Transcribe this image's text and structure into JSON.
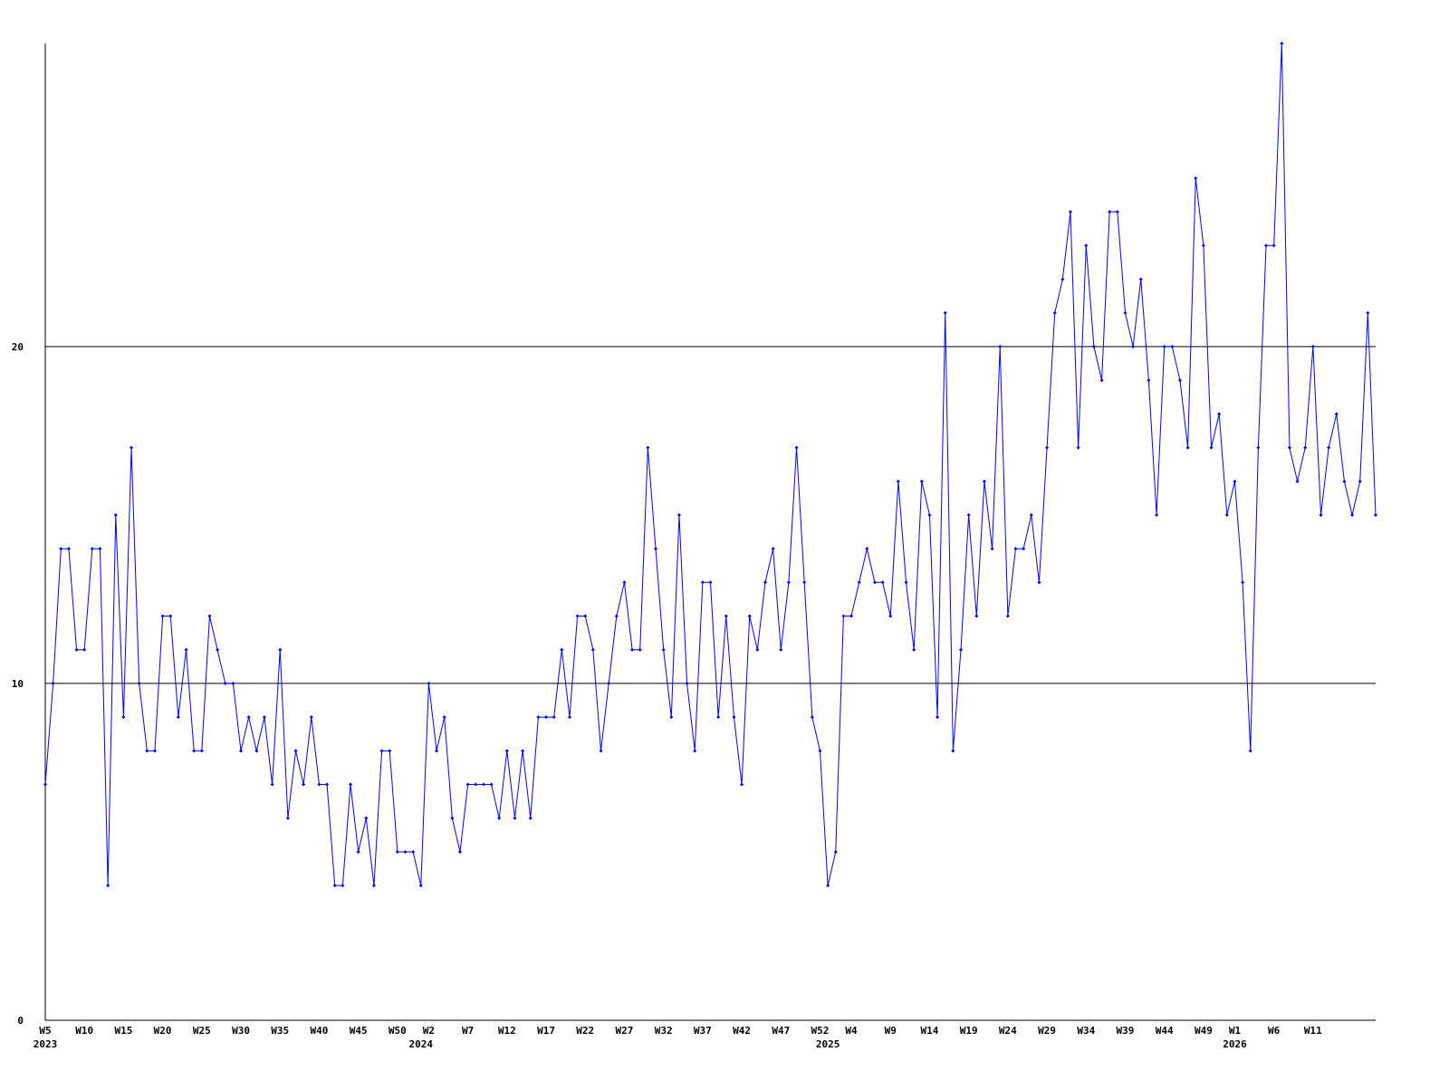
{
  "chart_data": {
    "type": "line",
    "color": "#0000ff",
    "ylim": [
      0,
      29
    ],
    "yticks": [
      0,
      10,
      20
    ],
    "grid": true,
    "categories": [
      "W5",
      null,
      null,
      null,
      null,
      "W10",
      null,
      null,
      null,
      null,
      "W15",
      null,
      null,
      null,
      null,
      "W20",
      null,
      null,
      null,
      null,
      "W25",
      null,
      null,
      null,
      null,
      "W30",
      null,
      null,
      null,
      null,
      "W35",
      null,
      null,
      null,
      null,
      "W40",
      null,
      null,
      null,
      null,
      "W45",
      null,
      null,
      null,
      null,
      "W50",
      null,
      null,
      null,
      "W2",
      null,
      null,
      null,
      null,
      "W7",
      null,
      null,
      null,
      null,
      "W12",
      null,
      null,
      null,
      null,
      "W17",
      null,
      null,
      null,
      null,
      "W22",
      null,
      null,
      null,
      null,
      "W27",
      null,
      null,
      null,
      null,
      "W32",
      null,
      null,
      null,
      null,
      "W37",
      null,
      null,
      null,
      null,
      "W42",
      null,
      null,
      null,
      null,
      "W47",
      null,
      null,
      null,
      null,
      "W52",
      null,
      null,
      null,
      "W4",
      null,
      null,
      null,
      null,
      "W9",
      null,
      null,
      null,
      null,
      "W14",
      null,
      null,
      null,
      null,
      "W19",
      null,
      null,
      null,
      null,
      "W24",
      null,
      null,
      null,
      null,
      "W29",
      null,
      null,
      null,
      null,
      "W34",
      null,
      null,
      null,
      null,
      "W39",
      null,
      null,
      null,
      null,
      "W44",
      null,
      null,
      null,
      null,
      "W49",
      null,
      null,
      null,
      "W1",
      null,
      null,
      null,
      null,
      "W6",
      null,
      null,
      null,
      null,
      "W11",
      null,
      null,
      null,
      null,
      null,
      null,
      null,
      null
    ],
    "years": [
      "2023",
      null,
      null,
      null,
      null,
      null,
      null,
      null,
      null,
      null,
      null,
      null,
      null,
      null,
      null,
      null,
      null,
      null,
      null,
      null,
      null,
      null,
      null,
      null,
      null,
      null,
      null,
      null,
      null,
      null,
      null,
      null,
      null,
      null,
      null,
      null,
      null,
      null,
      null,
      null,
      null,
      null,
      null,
      null,
      null,
      null,
      null,
      null,
      "2024",
      null,
      null,
      null,
      null,
      null,
      null,
      null,
      null,
      null,
      null,
      null,
      null,
      null,
      null,
      null,
      null,
      null,
      null,
      null,
      null,
      null,
      null,
      null,
      null,
      null,
      null,
      null,
      null,
      null,
      null,
      null,
      null,
      null,
      null,
      null,
      null,
      null,
      null,
      null,
      null,
      null,
      null,
      null,
      null,
      null,
      null,
      null,
      null,
      null,
      null,
      null,
      "2025",
      null,
      null,
      null,
      null,
      null,
      null,
      null,
      null,
      null,
      null,
      null,
      null,
      null,
      null,
      null,
      null,
      null,
      null,
      null,
      null,
      null,
      null,
      null,
      null,
      null,
      null,
      null,
      null,
      null,
      null,
      null,
      null,
      null,
      null,
      null,
      null,
      null,
      null,
      null,
      null,
      null,
      null,
      null,
      null,
      null,
      null,
      null,
      null,
      null,
      null,
      null,
      "2026",
      null,
      null,
      null,
      null,
      null,
      null,
      null,
      null,
      null,
      null,
      null,
      null,
      null,
      null,
      null,
      null,
      null,
      null
    ],
    "values": [
      7,
      10,
      14,
      14,
      11,
      11,
      14,
      14,
      4,
      15,
      9,
      17,
      10,
      8,
      8,
      12,
      12,
      9,
      11,
      8,
      8,
      12,
      11,
      10,
      10,
      8,
      9,
      8,
      9,
      7,
      11,
      6,
      8,
      7,
      9,
      7,
      7,
      4,
      4,
      7,
      5,
      6,
      4,
      8,
      8,
      5,
      5,
      5,
      4,
      10,
      8,
      9,
      6,
      5,
      7,
      7,
      7,
      7,
      6,
      8,
      6,
      8,
      6,
      9,
      9,
      9,
      11,
      9,
      12,
      12,
      11,
      8,
      10,
      12,
      13,
      11,
      11,
      17,
      14,
      11,
      9,
      15,
      10,
      8,
      13,
      13,
      9,
      12,
      9,
      7,
      12,
      11,
      13,
      14,
      11,
      13,
      17,
      13,
      9,
      8,
      4,
      5,
      12,
      12,
      13,
      14,
      13,
      13,
      12,
      16,
      13,
      11,
      16,
      15,
      9,
      21,
      8,
      11,
      15,
      12,
      16,
      14,
      20,
      12,
      14,
      14,
      15,
      13,
      17,
      21,
      22,
      24,
      17,
      23,
      20,
      19,
      24,
      24,
      21,
      20,
      22,
      19,
      15,
      20,
      20,
      19,
      17,
      25,
      23,
      17,
      18,
      15,
      16,
      13,
      8,
      17,
      23,
      23,
      29,
      17,
      16,
      17,
      20,
      15,
      17,
      18,
      16,
      15,
      16,
      21,
      15
    ]
  }
}
